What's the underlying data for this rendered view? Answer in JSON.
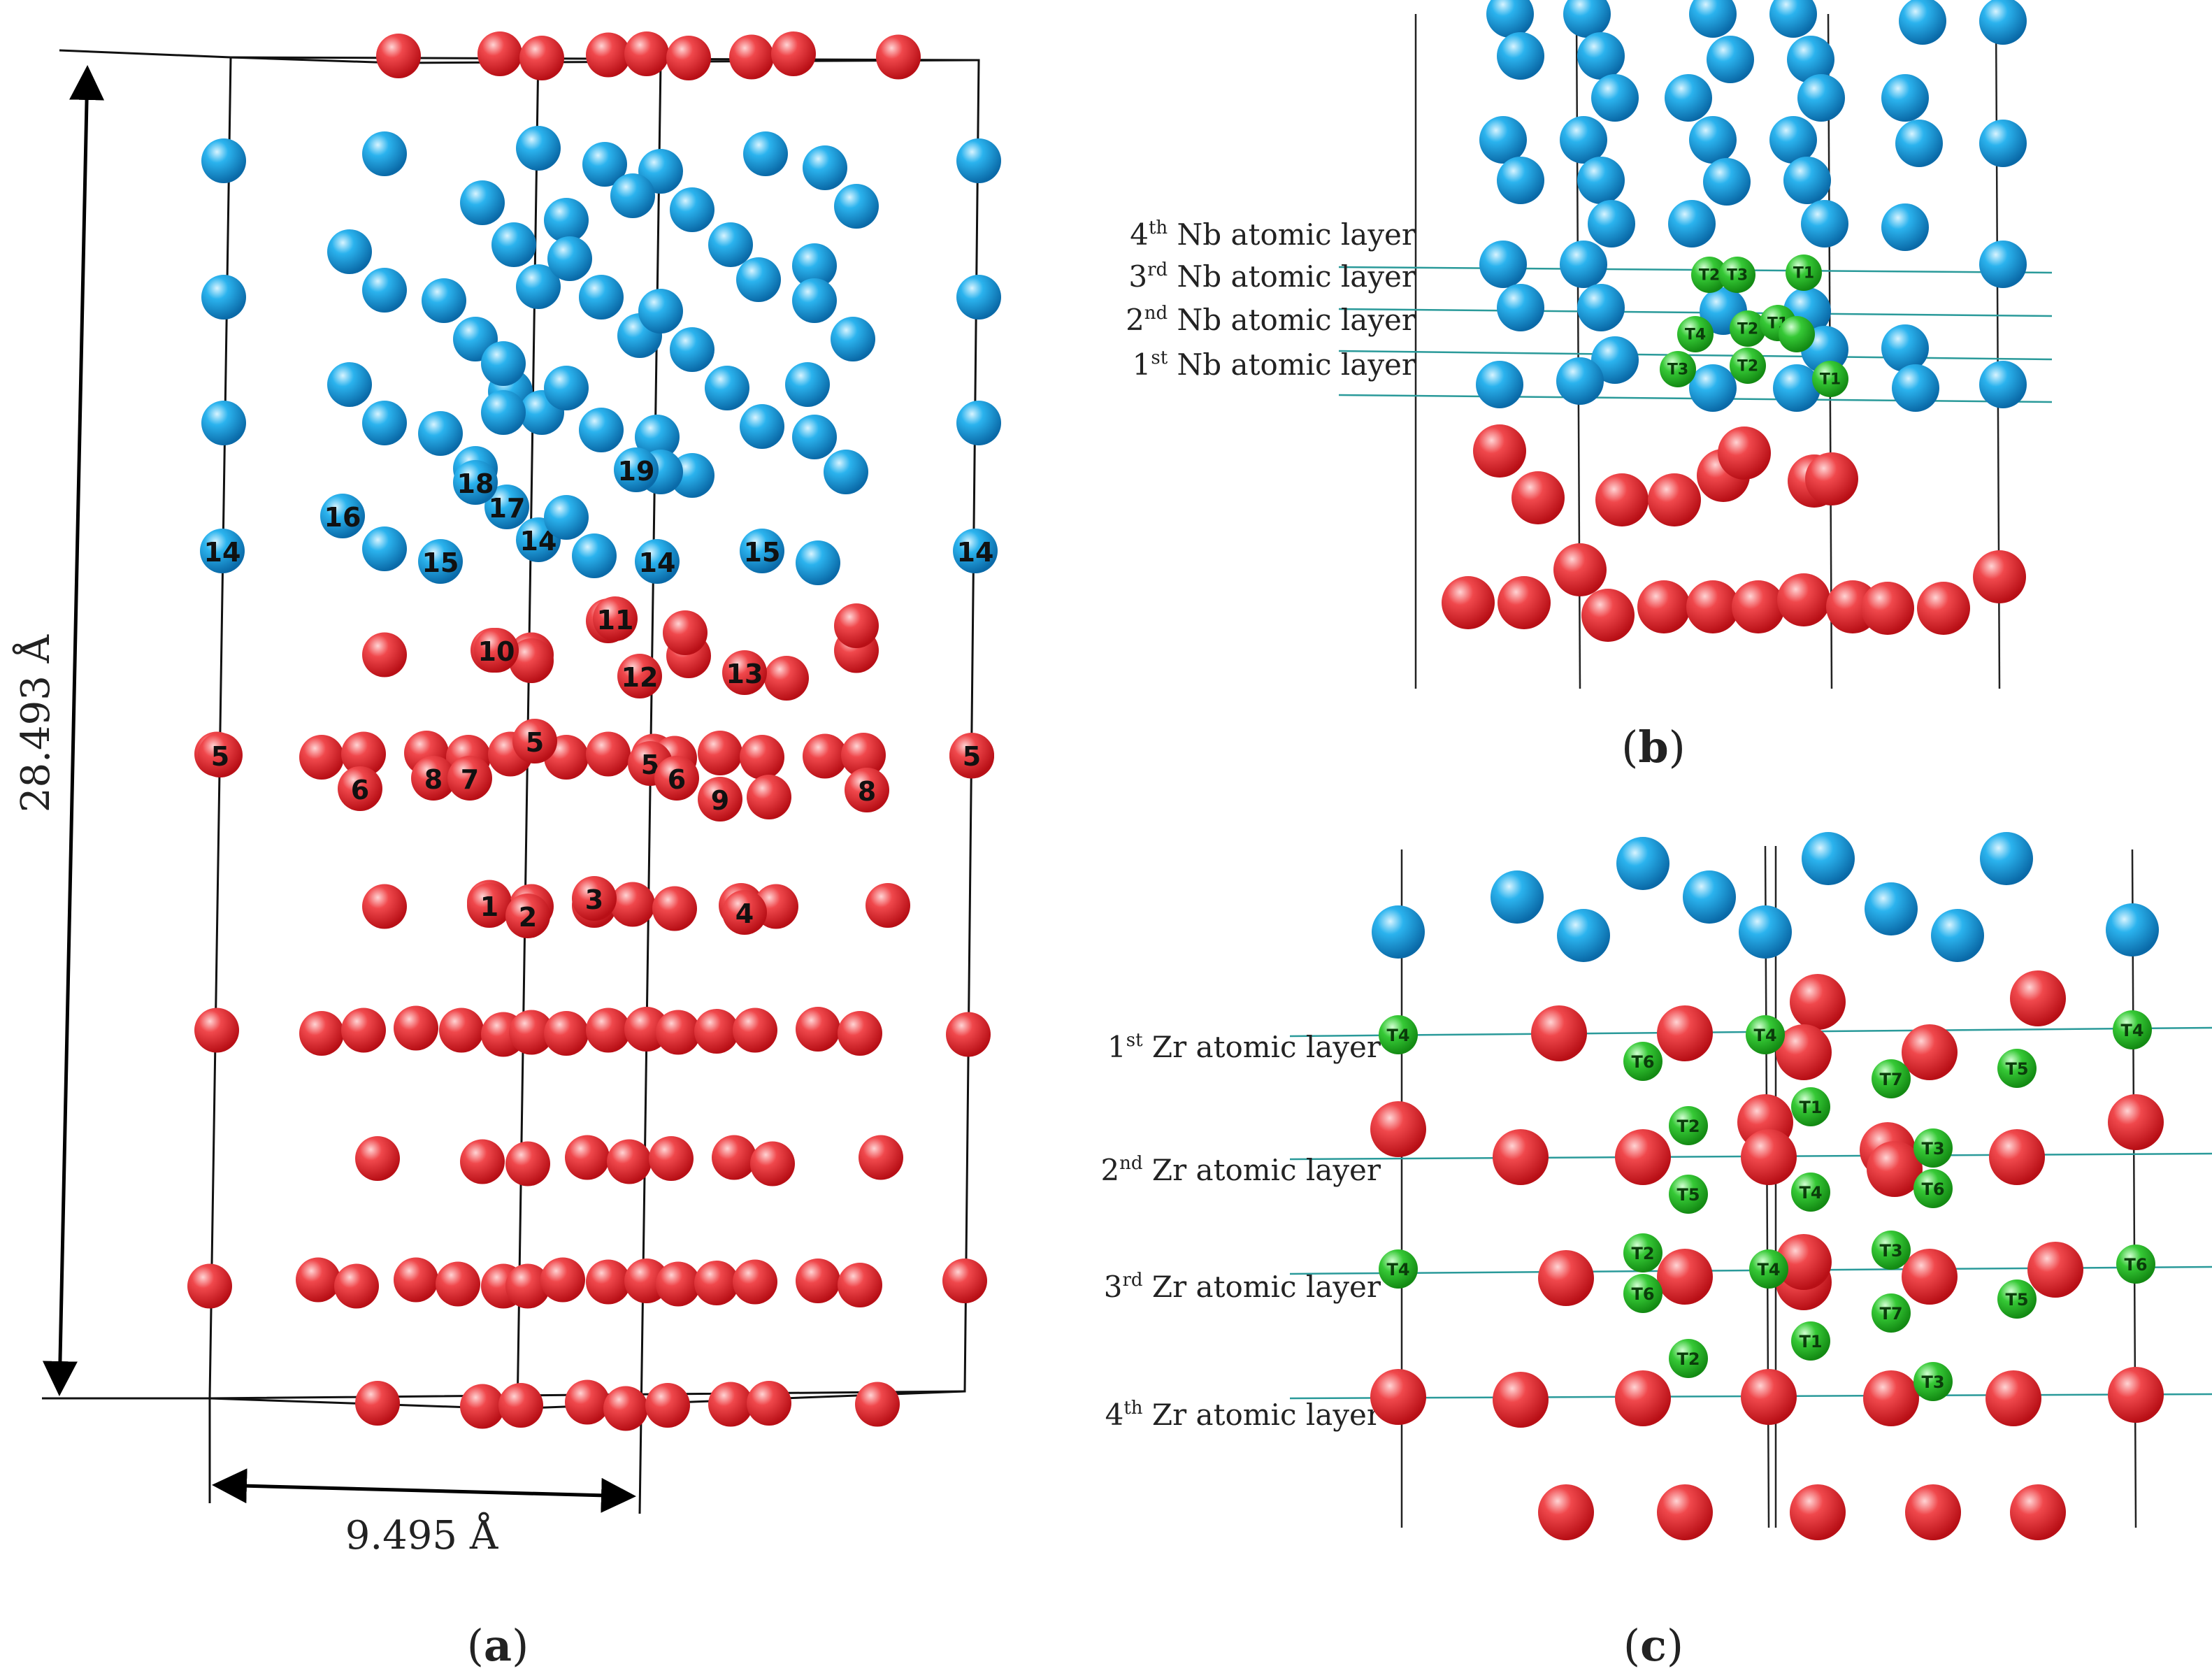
{
  "panels": {
    "a": {
      "caption_open": "(",
      "caption_letter": "a",
      "caption_close": ")",
      "height_dimension": "28.493 Å",
      "width_dimension": "9.495 Å",
      "atom_labels": [
        "5",
        "6",
        "8",
        "7",
        "5",
        "5",
        "6",
        "9",
        "8",
        "5",
        "1",
        "2",
        "3",
        "4",
        "10",
        "11",
        "12",
        "13",
        "14",
        "15",
        "14",
        "14",
        "15",
        "14",
        "16",
        "17",
        "18",
        "19"
      ]
    },
    "b": {
      "caption_open": "(",
      "caption_letter": "b",
      "caption_close": ")",
      "layers": [
        {
          "ord": "4",
          "sup": "th",
          "text": " Nb atomic layer"
        },
        {
          "ord": "3",
          "sup": "rd",
          "text": " Nb atomic layer"
        },
        {
          "ord": "2",
          "sup": "nd",
          "text": " Nb atomic layer"
        },
        {
          "ord": "1",
          "sup": "st",
          "text": " Nb atomic layer"
        }
      ],
      "site_labels": [
        "T2",
        "T3",
        "T1",
        "T4",
        "T2",
        "T1",
        "T3",
        "T2",
        "T1"
      ]
    },
    "c": {
      "caption_open": "(",
      "caption_letter": "c",
      "caption_close": ")",
      "layers": [
        {
          "ord": "1",
          "sup": "st",
          "text": " Zr atomic layer"
        },
        {
          "ord": "2",
          "sup": "nd",
          "text": " Zr atomic layer"
        },
        {
          "ord": "3",
          "sup": "rd",
          "text": " Zr atomic layer"
        },
        {
          "ord": "4",
          "sup": "th",
          "text": " Zr atomic layer"
        }
      ],
      "site_labels": [
        "T4",
        "T4",
        "T4",
        "T6",
        "T7",
        "T5",
        "T1",
        "T2",
        "T3",
        "T5",
        "T4",
        "T6",
        "T2",
        "T3",
        "T4",
        "T4",
        "T6",
        "T7",
        "T5",
        "T1",
        "T2",
        "T3"
      ]
    }
  },
  "colors": {
    "nb_atom": "#1fa8e8",
    "zr_atom": "#e8282e",
    "interstitial": "#2ec42e",
    "layer_line": "#2a9a9a"
  }
}
